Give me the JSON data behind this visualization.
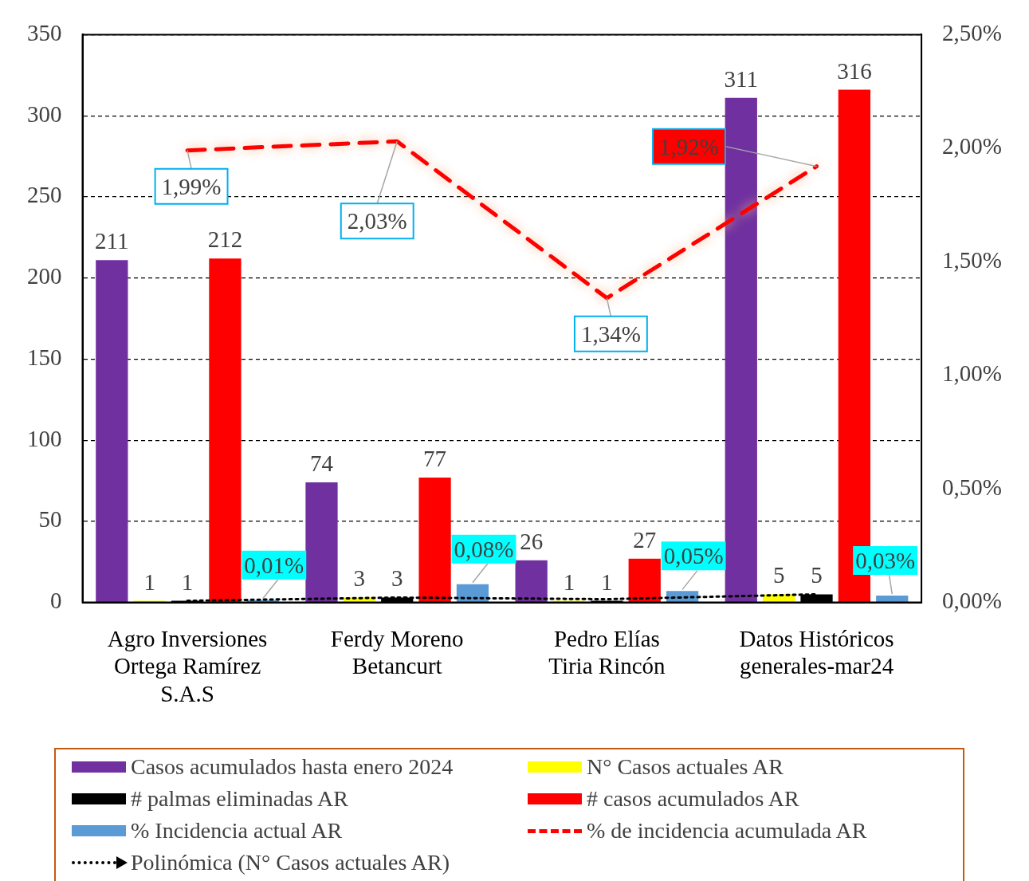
{
  "chart_data": {
    "type": "bar",
    "categories": [
      "Agro Inversiones Ortega Ramírez S.A.S",
      "Ferdy Moreno Betancurt",
      "Pedro Elías Tiria Rincón",
      "Datos Históricos generales-mar24"
    ],
    "series": [
      {
        "name": "Casos acumulados hasta enero 2024",
        "color": "#7030a0",
        "values": [
          211,
          74,
          26,
          311
        ],
        "value_labels": [
          "211",
          "74",
          "26",
          "311"
        ]
      },
      {
        "name": "N° Casos actuales AR",
        "color": "#ffff00",
        "values": [
          1,
          3,
          1,
          5
        ],
        "value_labels": [
          "1",
          "3",
          "1",
          "5"
        ]
      },
      {
        "name": "# palmas eliminadas AR",
        "color": "#000000",
        "values": [
          1,
          3,
          1,
          5
        ],
        "value_labels": [
          "1",
          "3",
          "1",
          "5"
        ]
      },
      {
        "name": "# casos acumulados AR",
        "color": "#ff0000",
        "values": [
          212,
          77,
          27,
          316
        ],
        "value_labels": [
          "212",
          "77",
          "27",
          "316"
        ]
      },
      {
        "name": "% Incidencia actual AR",
        "color": "#5b9bd5",
        "axis": "y2",
        "values": [
          0.01,
          0.08,
          0.05,
          0.03
        ],
        "value_labels": [
          "0,01%",
          "0,08%",
          "0,05%",
          "0,03%"
        ]
      },
      {
        "name": "% de incidencia acumulada AR",
        "type": "line",
        "line_style": "dashed",
        "color": "#ff0000",
        "axis": "y2",
        "values": [
          1.99,
          2.03,
          1.34,
          1.92
        ],
        "value_labels": [
          "1,99%",
          "2,03%",
          "1,34%",
          "1,92%"
        ]
      },
      {
        "name": "Polinómica (N° Casos actuales AR)",
        "type": "line",
        "line_style": "dotted",
        "color": "#000000",
        "values": [
          1,
          3,
          2,
          5
        ]
      }
    ],
    "ylim": [
      0,
      350
    ],
    "yticks": [
      0,
      50,
      100,
      150,
      200,
      250,
      300,
      350
    ],
    "y2lim": [
      0,
      2.5
    ],
    "y2ticks": [
      {
        "value": 0,
        "label": "0,00%"
      },
      {
        "value": 0.5,
        "label": "0,50%"
      },
      {
        "value": 1,
        "label": "1,00%"
      },
      {
        "value": 1.5,
        "label": "1,50%"
      },
      {
        "value": 2,
        "label": "2,00%"
      },
      {
        "value": 2.5,
        "label": "2,50%"
      }
    ],
    "grid": "y",
    "legend": "bottom",
    "marker": "none"
  }
}
